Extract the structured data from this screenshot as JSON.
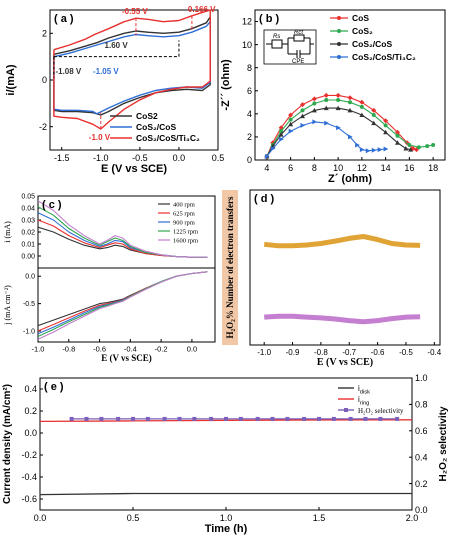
{
  "figure": {
    "panels": [
      {
        "id": "a",
        "label": "( a )"
      },
      {
        "id": "b",
        "label": "( b )"
      },
      {
        "id": "c",
        "label": "( c )"
      },
      {
        "id": "d",
        "label": "( d )"
      },
      {
        "id": "e",
        "label": "( e )"
      }
    ]
  },
  "colors": {
    "red": "#e8312f",
    "green": "#2ea84f",
    "black": "#333333",
    "blue": "#2f6fd6",
    "violet": "#7b5fb8",
    "purple": "#c47fd0",
    "orange": "#e0a335",
    "gray": "#777777",
    "d_label_bg": "#f0c8a8"
  },
  "chart_data": [
    {
      "panel": "a",
      "type": "line",
      "xlabel": "E (V vs SCE)",
      "ylabel": "i/(mA)",
      "xlim": [
        -1.65,
        0.5
      ],
      "ylim": [
        -3.0,
        3.0
      ],
      "xticks": [
        "-1.5",
        "-1.0",
        "-0.5",
        "0.0",
        "0.5"
      ],
      "yticks": [
        "-2",
        "0",
        "2"
      ],
      "series": [
        {
          "name": "CoS2",
          "color": "black",
          "x": [
            -1.6,
            -1.4,
            -1.2,
            -1.05,
            -0.9,
            -0.7,
            -0.55,
            -0.4,
            -0.2,
            0.0,
            0.166,
            0.35,
            0.4,
            0.4,
            0.3,
            0.1,
            -0.1,
            -0.3,
            -0.5,
            -0.7,
            -0.9,
            -1.0,
            -1.1,
            -1.3,
            -1.5,
            -1.6,
            -1.6
          ],
          "y": [
            1.1,
            1.25,
            1.45,
            1.6,
            1.8,
            2.0,
            2.1,
            2.05,
            2.0,
            2.05,
            2.2,
            2.45,
            2.7,
            -0.2,
            -0.45,
            -0.4,
            -0.45,
            -0.55,
            -0.75,
            -1.0,
            -1.35,
            -1.5,
            -1.4,
            -1.35,
            -1.35,
            -1.3,
            1.1
          ]
        },
        {
          "name": "CoS₂/CoS",
          "color": "blue",
          "x": [
            -1.6,
            -1.4,
            -1.2,
            -1.05,
            -0.9,
            -0.7,
            -0.55,
            -0.4,
            -0.2,
            0.0,
            0.166,
            0.35,
            0.4,
            0.4,
            0.3,
            0.1,
            -0.1,
            -0.3,
            -0.5,
            -0.7,
            -0.9,
            -1.05,
            -1.1,
            -1.3,
            -1.5,
            -1.6,
            -1.6
          ],
          "y": [
            1.0,
            1.15,
            1.35,
            1.5,
            1.65,
            1.85,
            1.95,
            1.9,
            1.85,
            1.9,
            2.05,
            2.3,
            2.5,
            -0.1,
            -0.35,
            -0.3,
            -0.35,
            -0.45,
            -0.65,
            -0.9,
            -1.2,
            -1.45,
            -1.35,
            -1.3,
            -1.3,
            -1.25,
            1.0
          ]
        },
        {
          "name": "CoS₂/CoS/Ti₃C₂",
          "color": "red",
          "x": [
            -1.6,
            -1.4,
            -1.2,
            -1.08,
            -0.9,
            -0.7,
            -0.55,
            -0.4,
            -0.2,
            0.0,
            0.166,
            0.35,
            0.4,
            0.4,
            0.3,
            0.1,
            -0.1,
            -0.3,
            -0.5,
            -0.7,
            -0.9,
            -1.0,
            -1.1,
            -1.3,
            -1.5,
            -1.6,
            -1.6
          ],
          "y": [
            1.3,
            1.5,
            1.75,
            1.95,
            2.2,
            2.5,
            2.65,
            2.6,
            2.5,
            2.55,
            2.75,
            2.95,
            3.0,
            -0.05,
            -0.3,
            -0.3,
            -0.4,
            -0.55,
            -0.85,
            -1.25,
            -1.8,
            -2.1,
            -1.9,
            -1.65,
            -1.6,
            -1.55,
            1.3
          ]
        }
      ],
      "annotations": [
        {
          "text": "-0.55 V",
          "x": -0.55,
          "y": 2.65,
          "color": "red"
        },
        {
          "text": "0.166 V",
          "x": 0.166,
          "y": 2.75,
          "color": "red"
        },
        {
          "text": "1.60 V",
          "x": -1.08,
          "y": 1.2,
          "color": "black"
        },
        {
          "text": "-1.08 V",
          "x": -1.08,
          "y": 0.1,
          "color": "black"
        },
        {
          "text": "-1.05 V",
          "x": -1.05,
          "y": 0.1,
          "color": "blue"
        },
        {
          "text": "-1.0 V",
          "x": -1.0,
          "y": -2.1,
          "color": "red"
        }
      ]
    },
    {
      "panel": "b",
      "type": "scatter",
      "xlabel": "Z´ (ohm)",
      "ylabel": "-Z´´ (ohm)",
      "xlim": [
        3,
        19
      ],
      "ylim": [
        0,
        13
      ],
      "xticks": [
        "4",
        "6",
        "8",
        "10",
        "12",
        "14",
        "16",
        "18"
      ],
      "yticks": [
        "0",
        "2",
        "4",
        "6",
        "8",
        "10",
        "12"
      ],
      "inset_labels": [
        "Rs",
        "Rct",
        "CPE"
      ],
      "series": [
        {
          "name": "CoS",
          "color": "red",
          "x": [
            4.0,
            4.5,
            5.2,
            6.0,
            7.0,
            8.0,
            9.0,
            10.0,
            11.0,
            12.0,
            13.0,
            14.0,
            15.0,
            15.8,
            16.3,
            16.6
          ],
          "y": [
            0.3,
            1.5,
            2.8,
            3.9,
            4.8,
            5.3,
            5.6,
            5.6,
            5.4,
            5.0,
            4.3,
            3.4,
            2.4,
            1.5,
            1.0,
            0.9
          ]
        },
        {
          "name": "CoS₂",
          "color": "green",
          "x": [
            4.0,
            4.5,
            5.2,
            6.0,
            7.0,
            8.0,
            9.0,
            10.0,
            11.0,
            12.0,
            13.0,
            14.0,
            15.0,
            16.0,
            16.8,
            17.5,
            18.0
          ],
          "y": [
            0.3,
            1.3,
            2.5,
            3.5,
            4.3,
            4.9,
            5.2,
            5.2,
            5.0,
            4.6,
            3.9,
            3.0,
            2.1,
            1.3,
            1.1,
            1.2,
            1.3
          ]
        },
        {
          "name": "CoS₂/CoS",
          "color": "black",
          "x": [
            4.0,
            4.5,
            5.2,
            6.0,
            7.0,
            8.0,
            9.0,
            10.0,
            11.0,
            12.0,
            13.0,
            14.0,
            15.0,
            15.7,
            16.1
          ],
          "y": [
            0.3,
            1.2,
            2.2,
            3.1,
            3.8,
            4.3,
            4.5,
            4.5,
            4.3,
            3.9,
            3.2,
            2.4,
            1.5,
            1.0,
            0.9
          ]
        },
        {
          "name": "CoS₂/CoS/Ti₃C₂",
          "color": "blue",
          "x": [
            4.0,
            4.5,
            5.2,
            6.0,
            7.0,
            8.0,
            9.0,
            10.0,
            11.0,
            11.6,
            12.0,
            12.5,
            13.0,
            13.5,
            14.0
          ],
          "y": [
            0.3,
            1.0,
            1.8,
            2.5,
            3.0,
            3.3,
            3.2,
            2.8,
            2.0,
            1.3,
            0.9,
            0.8,
            0.85,
            0.9,
            0.95
          ]
        }
      ]
    },
    {
      "panel": "c",
      "type": "line",
      "xlabel": "E (V vs SCE)",
      "ylabel_top": "i (mA)",
      "ylabel_bottom": "j (mA cm⁻²)",
      "xlim": [
        -1.0,
        0.15
      ],
      "xticks": [
        "-1.0",
        "-0.8",
        "-0.6",
        "-0.4",
        "-0.2",
        "0.0"
      ],
      "top_ylim": [
        -0.01,
        0.05
      ],
      "top_yticks": [
        "0.00",
        "0.01",
        "0.02",
        "0.03",
        "0.04",
        "0.05"
      ],
      "bottom_ylim": [
        -1.2,
        0.15
      ],
      "bottom_yticks": [
        "-1.0",
        "-0.5",
        "0.0"
      ],
      "x": [
        -1.0,
        -0.9,
        -0.8,
        -0.7,
        -0.6,
        -0.55,
        -0.5,
        -0.45,
        -0.4,
        -0.3,
        -0.2,
        -0.1,
        0.0,
        0.1
      ],
      "series": [
        {
          "name": "400 rpm",
          "color": "black",
          "top": [
            0.024,
            0.02,
            0.014,
            0.009,
            0.006,
            0.007,
            0.009,
            0.008,
            0.005,
            0.002,
            0.0005,
            -0.0005,
            -0.001,
            -0.001
          ],
          "bottom": [
            -0.9,
            -0.8,
            -0.7,
            -0.6,
            -0.5,
            -0.48,
            -0.45,
            -0.42,
            -0.35,
            -0.22,
            -0.1,
            0.0,
            0.05,
            0.08
          ]
        },
        {
          "name": "625 rpm",
          "color": "red",
          "top": [
            0.03,
            0.025,
            0.017,
            0.011,
            0.007,
            0.009,
            0.011,
            0.01,
            0.006,
            0.002,
            0.0005,
            -0.0005,
            -0.001,
            -0.001
          ],
          "bottom": [
            -1.0,
            -0.88,
            -0.76,
            -0.64,
            -0.53,
            -0.5,
            -0.47,
            -0.43,
            -0.36,
            -0.22,
            -0.1,
            0.0,
            0.05,
            0.08
          ]
        },
        {
          "name": "900 rpm",
          "color": "blue",
          "top": [
            0.036,
            0.03,
            0.02,
            0.013,
            0.008,
            0.01,
            0.013,
            0.012,
            0.007,
            0.003,
            0.001,
            -0.0005,
            -0.001,
            -0.001
          ],
          "bottom": [
            -1.05,
            -0.93,
            -0.8,
            -0.67,
            -0.55,
            -0.52,
            -0.48,
            -0.44,
            -0.37,
            -0.23,
            -0.1,
            0.0,
            0.05,
            0.08
          ]
        },
        {
          "name": "1225 rpm",
          "color": "green",
          "top": [
            0.041,
            0.034,
            0.023,
            0.015,
            0.009,
            0.012,
            0.015,
            0.013,
            0.008,
            0.003,
            0.001,
            -0.0005,
            -0.001,
            -0.001
          ],
          "bottom": [
            -1.1,
            -0.97,
            -0.83,
            -0.7,
            -0.57,
            -0.53,
            -0.49,
            -0.45,
            -0.37,
            -0.23,
            -0.1,
            0.0,
            0.05,
            0.08
          ]
        },
        {
          "name": "1600 rpm",
          "color": "purple",
          "top": [
            0.046,
            0.038,
            0.026,
            0.017,
            0.01,
            0.013,
            0.017,
            0.015,
            0.009,
            0.004,
            0.001,
            -0.0005,
            -0.001,
            -0.001
          ],
          "bottom": [
            -1.15,
            -1.02,
            -0.87,
            -0.73,
            -0.59,
            -0.55,
            -0.5,
            -0.46,
            -0.38,
            -0.24,
            -0.11,
            0.0,
            0.05,
            0.08
          ]
        }
      ]
    },
    {
      "panel": "d",
      "type": "line",
      "xlabel": "E (V vs SCE)",
      "ylabel": "H₂O₂% Number of electron transfers",
      "xlim": [
        -1.05,
        -0.38
      ],
      "ylim": [
        0.0,
        4.0
      ],
      "xticks": [
        "-1.0",
        "-0.9",
        "-0.8",
        "-0.7",
        "-0.6",
        "-0.5",
        "-0.4"
      ],
      "series": [
        {
          "name": "electron transfer number",
          "color": "orange",
          "x": [
            -1.0,
            -0.95,
            -0.9,
            -0.85,
            -0.8,
            -0.75,
            -0.7,
            -0.65,
            -0.6,
            -0.55,
            -0.5,
            -0.45
          ],
          "y": [
            2.6,
            2.56,
            2.56,
            2.58,
            2.62,
            2.68,
            2.75,
            2.8,
            2.72,
            2.62,
            2.58,
            2.57
          ]
        },
        {
          "name": "H₂O₂%",
          "color": "purple",
          "x": [
            -1.0,
            -0.95,
            -0.9,
            -0.85,
            -0.8,
            -0.75,
            -0.7,
            -0.65,
            -0.6,
            -0.55,
            -0.5,
            -0.45
          ],
          "y": [
            0.72,
            0.74,
            0.74,
            0.72,
            0.7,
            0.67,
            0.63,
            0.6,
            0.63,
            0.68,
            0.72,
            0.73
          ]
        }
      ]
    },
    {
      "panel": "e",
      "type": "line",
      "xlabel": "Time (h)",
      "ylabel": "Current density (mA/cm²)",
      "ylabel_right": "H₂O₂ selectivity",
      "xlim": [
        0.0,
        2.0
      ],
      "ylim": [
        -0.7,
        0.5
      ],
      "y2lim": [
        0.0,
        1.0
      ],
      "xticks": [
        "0.0",
        "0.5",
        "1.0",
        "1.5",
        "2.0"
      ],
      "yticks": [
        "-0.6",
        "-0.4",
        "-0.2",
        "0.0",
        "0.2",
        "0.4"
      ],
      "y2ticks": [
        "0.0",
        "0.2",
        "0.4",
        "0.6",
        "0.8",
        "1.0"
      ],
      "series": [
        {
          "name": "i_disk",
          "label": "i",
          "sub": "disk",
          "color": "black",
          "axis": "left",
          "x": [
            0.0,
            0.5,
            1.0,
            1.5,
            2.0
          ],
          "y": [
            -0.56,
            -0.55,
            -0.55,
            -0.55,
            -0.55
          ]
        },
        {
          "name": "i_ring",
          "label": "i",
          "sub": "ring",
          "color": "red",
          "axis": "left",
          "x": [
            0.0,
            0.5,
            1.0,
            1.5,
            2.0
          ],
          "y": [
            0.105,
            0.11,
            0.115,
            0.118,
            0.12
          ]
        },
        {
          "name": "H₂O₂ selectivity",
          "color": "violet",
          "axis": "right",
          "markers": true,
          "x": [
            0.17,
            0.25,
            0.33,
            0.42,
            0.5,
            0.58,
            0.67,
            0.75,
            0.83,
            0.92,
            1.0,
            1.08,
            1.17,
            1.25,
            1.33,
            1.42,
            1.5,
            1.58,
            1.67,
            1.75,
            1.83,
            1.92
          ],
          "y": [
            0.69,
            0.69,
            0.69,
            0.69,
            0.69,
            0.69,
            0.69,
            0.69,
            0.69,
            0.69,
            0.69,
            0.69,
            0.69,
            0.69,
            0.69,
            0.69,
            0.69,
            0.69,
            0.69,
            0.69,
            0.69,
            0.69
          ]
        }
      ]
    }
  ]
}
